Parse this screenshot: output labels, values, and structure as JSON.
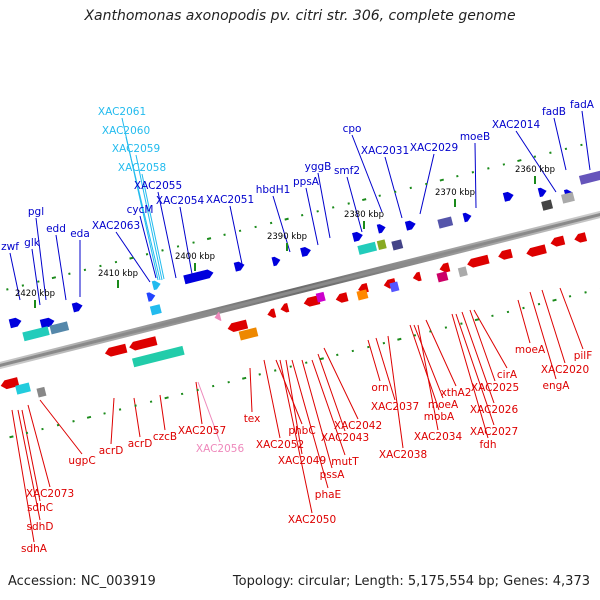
{
  "title": "Xanthomonas axonopodis pv. citri str. 306, complete genome",
  "accession": "Accession: NC_003919",
  "summary": "Topology: circular; Length: 5,175,554 bp; Genes: 4,373",
  "ticks": [
    "2420 kbp",
    "2410 kbp",
    "2400 kbp",
    "2390 kbp",
    "2380 kbp",
    "2370 kbp",
    "2360 kbp"
  ],
  "colors": {
    "forward": "#0000cc",
    "forward_light": "#22bbee",
    "reverse": "#dd0000",
    "reverse_light": "#ee88bb"
  },
  "top_labels": [
    "zwf",
    "glk",
    "pgl",
    "edd",
    "eda",
    "XAC2063",
    "cycM",
    "XAC2061",
    "XAC2060",
    "XAC2059",
    "XAC2058",
    "XAC2055",
    "XAC2054",
    "XAC2051",
    "hbdH1",
    "ppsA",
    "yggB",
    "smf2",
    "cpo",
    "XAC2031",
    "XAC2029",
    "moeB",
    "XAC2014",
    "fadB",
    "fadA"
  ],
  "bottom_labels": [
    "sdhA",
    "sdhD",
    "sdhC",
    "XAC2073",
    "ugpC",
    "acrD",
    "acrD",
    "czcB",
    "XAC2057",
    "XAC2056",
    "tex",
    "XAC2052",
    "phbC",
    "XAC2049",
    "phaE",
    "XAC2050",
    "pssA",
    "mutT",
    "XAC2043",
    "XAC2042",
    "orn",
    "XAC2037",
    "XAC2038",
    "moeA",
    "mobA",
    "xthA2",
    "XAC2034",
    "cirA",
    "XAC2025",
    "XAC2026",
    "XAC2027",
    "fdh",
    "moeA",
    "engA",
    "XAC2020",
    "pilF"
  ]
}
